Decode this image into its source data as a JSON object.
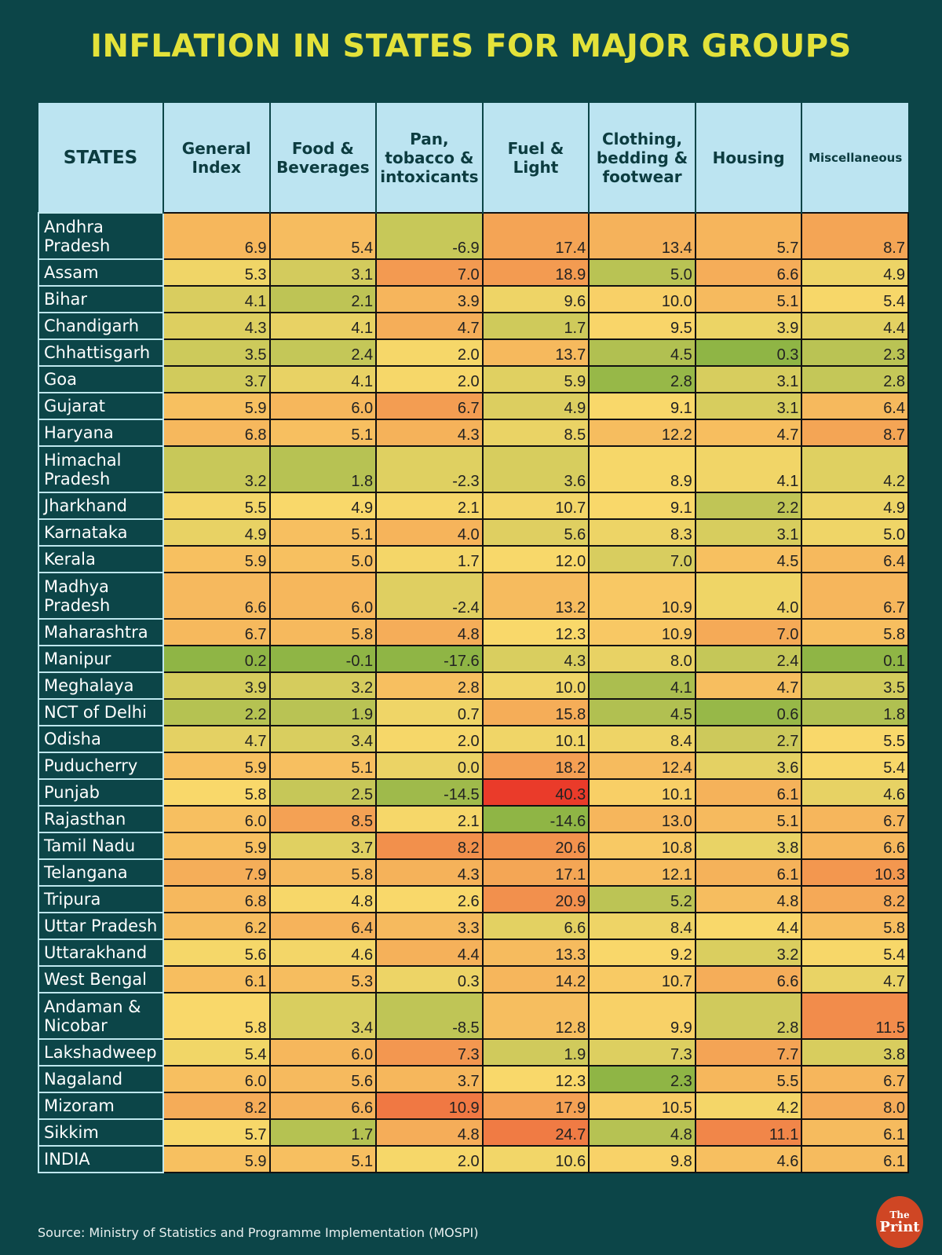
{
  "title": "INFLATION IN STATES FOR MAJOR GROUPS",
  "source": "Source: Ministry of Statistics and Programme Implementation (MOSPI)",
  "logo": {
    "the": "The",
    "print": "Print"
  },
  "chart_data": {
    "type": "table",
    "title": "INFLATION IN STATES FOR MAJOR GROUPS",
    "columns": [
      "STATES",
      "General Index",
      "Food & Beverages",
      "Pan, tobacco & intoxicants",
      "Fuel & Light",
      "Clothing, bedding & footwear",
      "Housing",
      "Miscellaneous"
    ],
    "rows": [
      {
        "state": "Andhra Pradesh",
        "values": [
          6.9,
          5.4,
          -6.9,
          17.4,
          13.4,
          5.7,
          8.7
        ]
      },
      {
        "state": "Assam",
        "values": [
          5.3,
          3.1,
          7.0,
          18.9,
          5.0,
          6.6,
          4.9
        ]
      },
      {
        "state": "Bihar",
        "values": [
          4.1,
          2.1,
          3.9,
          9.6,
          10.0,
          5.1,
          5.4
        ]
      },
      {
        "state": "Chandigarh",
        "values": [
          4.3,
          4.1,
          4.7,
          1.7,
          9.5,
          3.9,
          4.4
        ]
      },
      {
        "state": "Chhattisgarh",
        "values": [
          3.5,
          2.4,
          2.0,
          13.7,
          4.5,
          0.3,
          2.3
        ]
      },
      {
        "state": "Goa",
        "values": [
          3.7,
          4.1,
          2.0,
          5.9,
          2.8,
          3.1,
          2.8
        ]
      },
      {
        "state": "Gujarat",
        "values": [
          5.9,
          6.0,
          6.7,
          4.9,
          9.1,
          3.1,
          6.4
        ]
      },
      {
        "state": "Haryana",
        "values": [
          6.8,
          5.1,
          4.3,
          8.5,
          12.2,
          4.7,
          8.7
        ]
      },
      {
        "state": "Himachal Pradesh",
        "values": [
          3.2,
          1.8,
          -2.3,
          3.6,
          8.9,
          4.1,
          4.2
        ]
      },
      {
        "state": "Jharkhand",
        "values": [
          5.5,
          4.9,
          2.1,
          10.7,
          9.1,
          2.2,
          4.9
        ]
      },
      {
        "state": "Karnataka",
        "values": [
          4.9,
          5.1,
          4.0,
          5.6,
          8.3,
          3.1,
          5.0
        ]
      },
      {
        "state": "Kerala",
        "values": [
          5.9,
          5.0,
          1.7,
          12.0,
          7.0,
          4.5,
          6.4
        ]
      },
      {
        "state": "Madhya Pradesh",
        "values": [
          6.6,
          6.0,
          -2.4,
          13.2,
          10.9,
          4.0,
          6.7
        ]
      },
      {
        "state": "Maharashtra",
        "values": [
          6.7,
          5.8,
          4.8,
          12.3,
          10.9,
          7.0,
          5.8
        ]
      },
      {
        "state": "Manipur",
        "values": [
          0.2,
          -0.1,
          -17.6,
          4.3,
          8.0,
          2.4,
          0.1
        ]
      },
      {
        "state": "Meghalaya",
        "values": [
          3.9,
          3.2,
          2.8,
          10.0,
          4.1,
          4.7,
          3.5
        ]
      },
      {
        "state": "NCT of Delhi",
        "values": [
          2.2,
          1.9,
          0.7,
          15.8,
          4.5,
          0.6,
          1.8
        ]
      },
      {
        "state": "Odisha",
        "values": [
          4.7,
          3.4,
          2.0,
          10.1,
          8.4,
          2.7,
          5.5
        ]
      },
      {
        "state": "Puducherry",
        "values": [
          5.9,
          5.1,
          0.0,
          18.2,
          12.4,
          3.6,
          5.4
        ]
      },
      {
        "state": "Punjab",
        "values": [
          5.8,
          2.5,
          -14.5,
          40.3,
          10.1,
          6.1,
          4.6
        ]
      },
      {
        "state": "Rajasthan",
        "values": [
          6.0,
          8.5,
          2.1,
          -14.6,
          13.0,
          5.1,
          6.7
        ]
      },
      {
        "state": "Tamil Nadu",
        "values": [
          5.9,
          3.7,
          8.2,
          20.6,
          10.8,
          3.8,
          6.6
        ]
      },
      {
        "state": "Telangana",
        "values": [
          7.9,
          5.8,
          4.3,
          17.1,
          12.1,
          6.1,
          10.3
        ]
      },
      {
        "state": "Tripura",
        "values": [
          6.8,
          4.8,
          2.6,
          20.9,
          5.2,
          4.8,
          8.2
        ]
      },
      {
        "state": "Uttar Pradesh",
        "values": [
          6.2,
          6.4,
          3.3,
          6.6,
          8.4,
          4.4,
          5.8
        ]
      },
      {
        "state": "Uttarakhand",
        "values": [
          5.6,
          4.6,
          4.4,
          13.3,
          9.2,
          3.2,
          5.4
        ]
      },
      {
        "state": "West Bengal",
        "values": [
          6.1,
          5.3,
          0.3,
          14.2,
          10.7,
          6.6,
          4.7
        ]
      },
      {
        "state": "Andaman & Nicobar",
        "values": [
          5.8,
          3.4,
          -8.5,
          12.8,
          9.9,
          2.8,
          11.5
        ]
      },
      {
        "state": "Lakshadweep",
        "values": [
          5.4,
          6.0,
          7.3,
          1.9,
          7.3,
          7.7,
          3.8
        ]
      },
      {
        "state": "Nagaland",
        "values": [
          6.0,
          5.6,
          3.7,
          12.3,
          2.3,
          5.5,
          6.7
        ]
      },
      {
        "state": "Mizoram",
        "values": [
          8.2,
          6.6,
          10.9,
          17.9,
          10.5,
          4.2,
          8.0
        ]
      },
      {
        "state": "Sikkim",
        "values": [
          5.7,
          1.7,
          4.8,
          24.7,
          4.8,
          11.1,
          6.1
        ]
      },
      {
        "state": "INDIA",
        "values": [
          5.9,
          5.1,
          2.0,
          10.6,
          9.8,
          4.6,
          6.1
        ]
      }
    ],
    "color_scale": {
      "low": "#8fb545",
      "mid": "#f9d86a",
      "high": "#ea3b2a"
    }
  }
}
